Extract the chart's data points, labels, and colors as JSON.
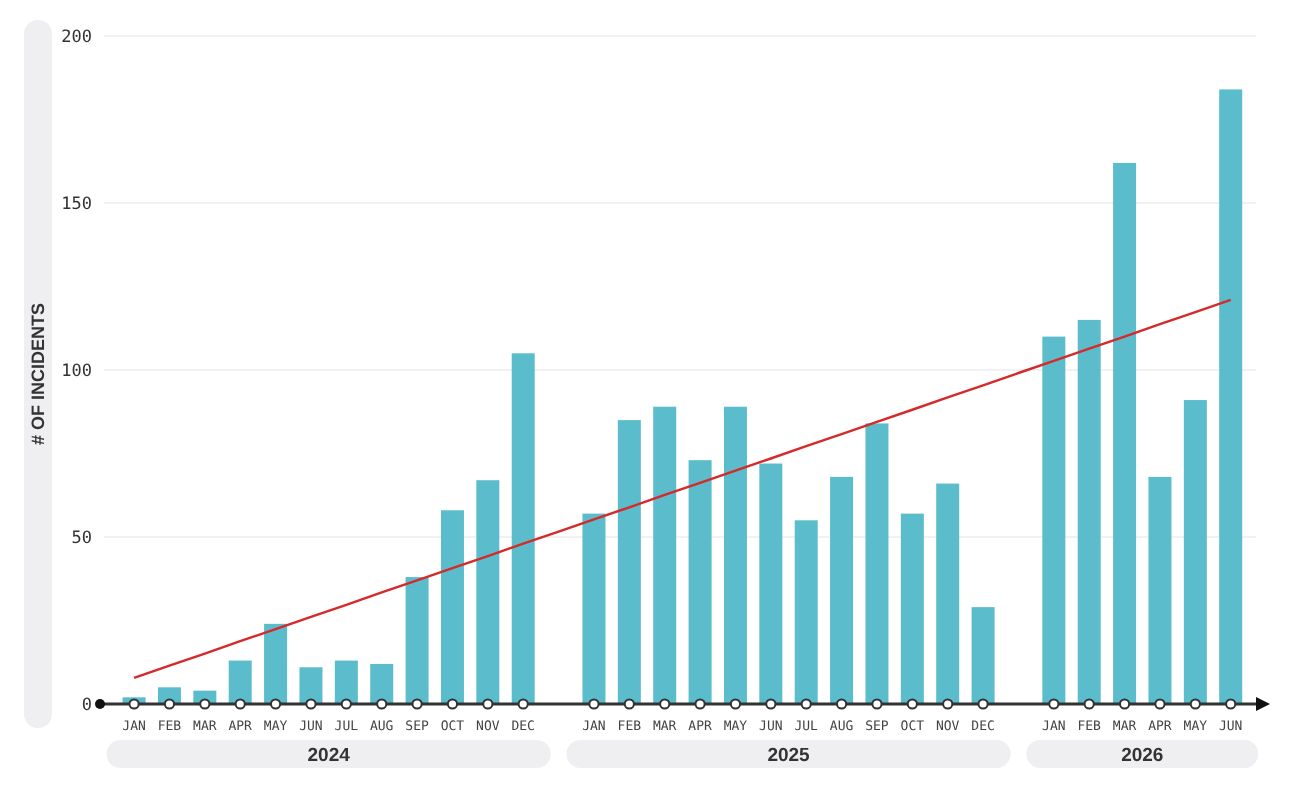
{
  "chart_data": {
    "type": "bar",
    "ylabel": "# OF INCIDENTS",
    "categories": [
      "JAN",
      "FEB",
      "MAR",
      "APR",
      "MAY",
      "JUN",
      "JUL",
      "AUG",
      "SEP",
      "OCT",
      "NOV",
      "DEC",
      null,
      "JAN",
      "FEB",
      "MAR",
      "APR",
      "MAY",
      "JUN",
      "JUL",
      "AUG",
      "SEP",
      "OCT",
      "NOV",
      "DEC",
      null,
      "JAN",
      "FEB",
      "MAR",
      "APR",
      "MAY",
      "JUN"
    ],
    "series": [
      {
        "color": "#5bbccc",
        "values": [
          2,
          5,
          4,
          13,
          24,
          11,
          13,
          12,
          38,
          58,
          67,
          105,
          null,
          57,
          85,
          89,
          73,
          89,
          72,
          55,
          68,
          84,
          57,
          66,
          29,
          null,
          110,
          115,
          162,
          68,
          91,
          184
        ]
      },
      {
        "type": "line",
        "color": "#d62a2a",
        "values": [
          7.8,
          11.5,
          15.1,
          18.8,
          22.4,
          26.1,
          29.7,
          33.4,
          37.0,
          40.7,
          44.3,
          48.0,
          51.6,
          55.3,
          58.9,
          62.6,
          66.2,
          69.9,
          73.5,
          77.2,
          80.8,
          84.5,
          88.1,
          91.8,
          95.4,
          99.1,
          102.7,
          106.4,
          110.0,
          113.7,
          117.3,
          121.0
        ]
      }
    ],
    "annotations": [
      "2024",
      "2025",
      "2026"
    ],
    "ylim": [
      0,
      200
    ],
    "yticks": [
      0,
      50,
      100,
      150,
      200
    ],
    "grid": "y"
  }
}
